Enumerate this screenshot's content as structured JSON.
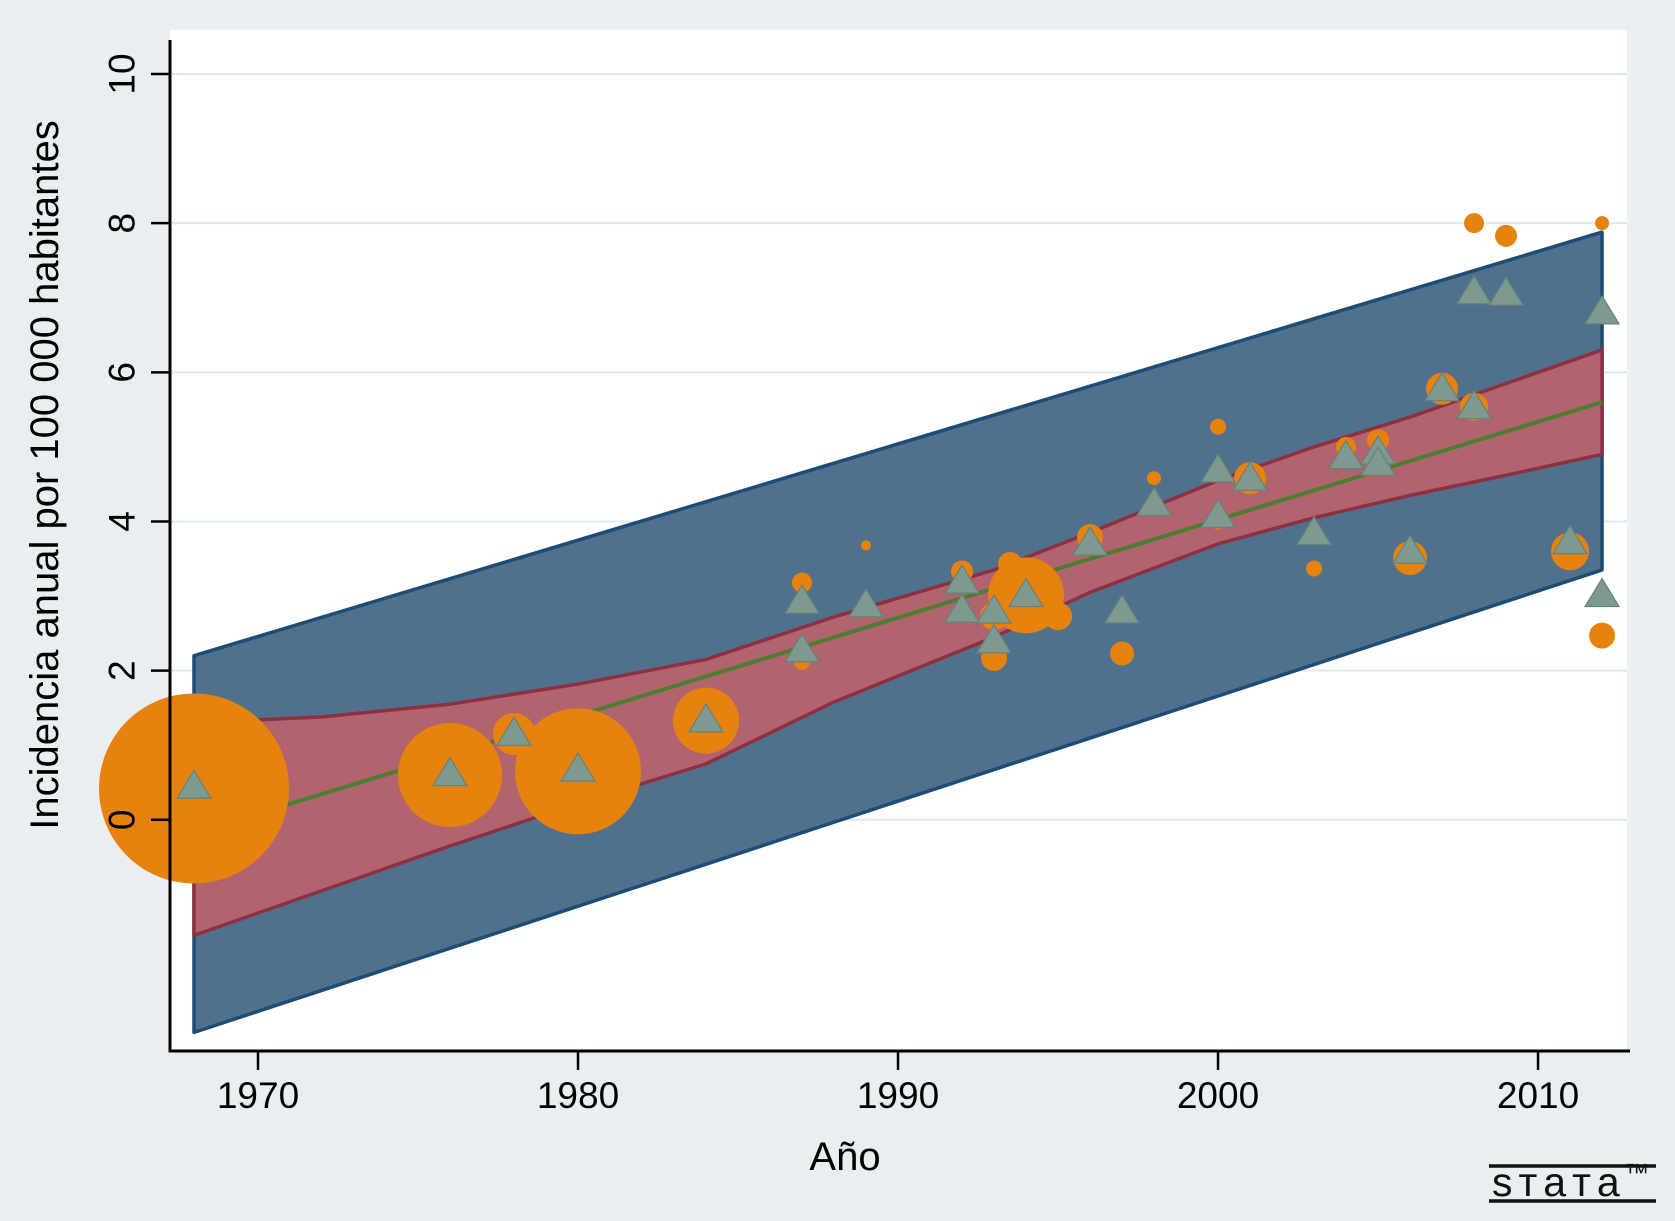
{
  "colors": {
    "background": "#e9eef1",
    "plot_background": "#ffffff",
    "gridline": "#dfe9ed",
    "prediction_band_fill": "#4f718e",
    "prediction_band_edge": "#1d4c75",
    "ci_band_fill": "#b2646e",
    "ci_band_edge": "#8e3040",
    "fit_line": "#4e7d32",
    "circle_marker": "#e8820e",
    "triangle_marker": "#7e998e",
    "triangle_edge": "#66817a",
    "axis": "#000000"
  },
  "logo": {
    "text": "sтaтa",
    "tm": "™"
  },
  "chart_data": {
    "type": "scatter",
    "title": "",
    "xlabel": "Año",
    "ylabel": "Incidencia anual por 100 000 habitantes",
    "xlim": [
      1967.25,
      2012.78
    ],
    "ylim": [
      -3.1,
      10.59
    ],
    "x_ticks": [
      1970,
      1980,
      1990,
      2000,
      2010
    ],
    "y_ticks": [
      0,
      2,
      4,
      6,
      8,
      10
    ],
    "grid": "horizontal",
    "legend": "none",
    "series": [
      {
        "name": "prediction-band",
        "type": "band",
        "top": [
          [
            1968,
            2.2
          ],
          [
            2012,
            7.88
          ]
        ],
        "bottom": [
          [
            1968,
            -2.85
          ],
          [
            2012,
            3.35
          ]
        ]
      },
      {
        "name": "confidence-band",
        "type": "band",
        "top": [
          [
            1968,
            1.3
          ],
          [
            1972,
            1.38
          ],
          [
            1976,
            1.55
          ],
          [
            1980,
            1.82
          ],
          [
            1984,
            2.15
          ],
          [
            1988,
            2.72
          ],
          [
            1993,
            3.35
          ],
          [
            1996,
            3.85
          ],
          [
            2000,
            4.55
          ],
          [
            2003,
            5.0
          ],
          [
            2006,
            5.4
          ],
          [
            2009,
            5.85
          ],
          [
            2012,
            6.3
          ]
        ],
        "bottom": [
          [
            1968,
            -1.55
          ],
          [
            1972,
            -0.95
          ],
          [
            1976,
            -0.35
          ],
          [
            1980,
            0.22
          ],
          [
            1984,
            0.75
          ],
          [
            1988,
            1.58
          ],
          [
            1993,
            2.45
          ],
          [
            1996,
            3.05
          ],
          [
            2000,
            3.7
          ],
          [
            2003,
            4.05
          ],
          [
            2006,
            4.35
          ],
          [
            2009,
            4.62
          ],
          [
            2012,
            4.9
          ]
        ]
      },
      {
        "name": "linear-fit",
        "type": "line",
        "points": [
          [
            1968,
            -0.18
          ],
          [
            2012,
            5.6
          ]
        ]
      },
      {
        "name": "incidencia-ponderada-circulos",
        "type": "scatter",
        "marker": "circle",
        "points": [
          {
            "x": 1968,
            "y": 0.42,
            "r": 95
          },
          {
            "x": 1976,
            "y": 0.6,
            "r": 52
          },
          {
            "x": 1978,
            "y": 1.15,
            "r": 21
          },
          {
            "x": 1980,
            "y": 0.65,
            "r": 63
          },
          {
            "x": 1984,
            "y": 1.33,
            "r": 33
          },
          {
            "x": 1987,
            "y": 3.18,
            "r": 10
          },
          {
            "x": 1987,
            "y": 2.12,
            "r": 8
          },
          {
            "x": 1989,
            "y": 3.68,
            "r": 5
          },
          {
            "x": 1992,
            "y": 3.33,
            "r": 11
          },
          {
            "x": 1993,
            "y": 2.17,
            "r": 13
          },
          {
            "x": 1993,
            "y": 2.73,
            "r": 14
          },
          {
            "x": 1993.5,
            "y": 3.43,
            "r": 12
          },
          {
            "x": 1994,
            "y": 3.01,
            "r": 38
          },
          {
            "x": 1995,
            "y": 2.73,
            "r": 14
          },
          {
            "x": 1996,
            "y": 3.79,
            "r": 13
          },
          {
            "x": 1997,
            "y": 2.23,
            "r": 12
          },
          {
            "x": 1998,
            "y": 4.58,
            "r": 7
          },
          {
            "x": 2000,
            "y": 5.27,
            "r": 8
          },
          {
            "x": 2000,
            "y": 4.0,
            "r": 8
          },
          {
            "x": 2001,
            "y": 4.58,
            "r": 16
          },
          {
            "x": 2003,
            "y": 3.37,
            "r": 8
          },
          {
            "x": 2004,
            "y": 5.0,
            "r": 10
          },
          {
            "x": 2005,
            "y": 5.09,
            "r": 11
          },
          {
            "x": 2006,
            "y": 3.51,
            "r": 17
          },
          {
            "x": 2007,
            "y": 5.78,
            "r": 16
          },
          {
            "x": 2008,
            "y": 5.54,
            "r": 14
          },
          {
            "x": 2008,
            "y": 8.0,
            "r": 10
          },
          {
            "x": 2009,
            "y": 7.83,
            "r": 11
          },
          {
            "x": 2011,
            "y": 3.6,
            "r": 19
          },
          {
            "x": 2012,
            "y": 8.0,
            "r": 7
          },
          {
            "x": 2012,
            "y": 2.47,
            "r": 13
          }
        ]
      },
      {
        "name": "incidencia-triangulos",
        "type": "scatter",
        "marker": "triangle",
        "points": [
          {
            "x": 1968,
            "y": 0.45
          },
          {
            "x": 1976,
            "y": 0.62
          },
          {
            "x": 1978,
            "y": 1.16
          },
          {
            "x": 1980,
            "y": 0.68
          },
          {
            "x": 1984,
            "y": 1.34
          },
          {
            "x": 1987,
            "y": 2.93
          },
          {
            "x": 1987,
            "y": 2.28
          },
          {
            "x": 1989,
            "y": 2.88
          },
          {
            "x": 1992,
            "y": 3.2
          },
          {
            "x": 1992,
            "y": 2.81
          },
          {
            "x": 1993,
            "y": 2.8
          },
          {
            "x": 1993,
            "y": 2.4
          },
          {
            "x": 1994,
            "y": 3.02
          },
          {
            "x": 1996,
            "y": 3.71
          },
          {
            "x": 1997,
            "y": 2.8
          },
          {
            "x": 1998,
            "y": 4.24
          },
          {
            "x": 2000,
            "y": 4.69
          },
          {
            "x": 2000,
            "y": 4.08
          },
          {
            "x": 2001,
            "y": 4.58
          },
          {
            "x": 2003,
            "y": 3.85
          },
          {
            "x": 2004,
            "y": 4.87
          },
          {
            "x": 2005,
            "y": 4.93
          },
          {
            "x": 2005,
            "y": 4.78
          },
          {
            "x": 2006,
            "y": 3.6
          },
          {
            "x": 2007,
            "y": 5.78
          },
          {
            "x": 2008,
            "y": 5.54
          },
          {
            "x": 2008,
            "y": 7.08
          },
          {
            "x": 2009,
            "y": 7.06
          },
          {
            "x": 2011,
            "y": 3.73
          },
          {
            "x": 2012,
            "y": 6.81
          },
          {
            "x": 2012,
            "y": 3.02
          }
        ]
      }
    ]
  }
}
